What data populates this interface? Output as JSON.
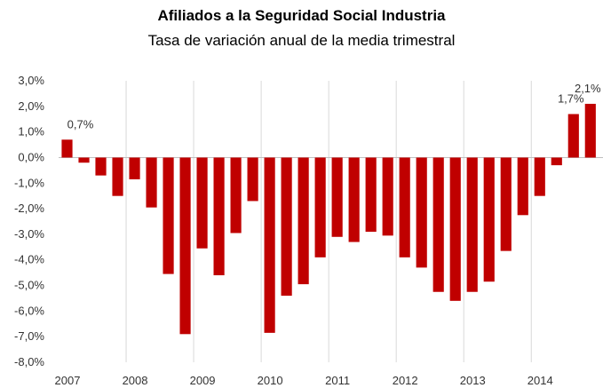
{
  "chart_data": {
    "type": "bar",
    "title": "Afiliados a la Seguridad Social Industria",
    "subtitle": "Tasa de variación anual de la media trimestral",
    "xlabel": "",
    "ylabel": "",
    "ylim": [
      -8,
      3
    ],
    "yticks": [
      3,
      2,
      1,
      0,
      -1,
      -2,
      -3,
      -4,
      -5,
      -6,
      -7,
      -8
    ],
    "ytick_labels": [
      "3,0%",
      "2,0%",
      "1,0%",
      "0,0%",
      "-1,0%",
      "-2,0%",
      "-3,0%",
      "-4,0%",
      "-5,0%",
      "-6,0%",
      "-7,0%",
      "-8,0%"
    ],
    "year_labels": [
      "2007",
      "2008",
      "2009",
      "2010",
      "2011",
      "2012",
      "2013",
      "2014"
    ],
    "values": [
      0.7,
      -0.2,
      -0.7,
      -1.5,
      -0.85,
      -1.95,
      -4.55,
      -6.9,
      -3.55,
      -4.6,
      -2.95,
      -1.7,
      -6.85,
      -5.4,
      -4.95,
      -3.9,
      -3.1,
      -3.3,
      -2.9,
      -3.05,
      -3.9,
      -4.3,
      -5.25,
      -5.6,
      -5.25,
      -4.85,
      -3.65,
      -2.25,
      -1.5,
      -0.3,
      1.7,
      2.1
    ],
    "data_labels": [
      {
        "index": 0,
        "text": "0,7%"
      },
      {
        "index": 30,
        "text": "1,7%"
      },
      {
        "index": 31,
        "text": "2,1%"
      }
    ],
    "bar_color": "#c00000",
    "grid": "vertical-year-lines",
    "legend": "none"
  }
}
